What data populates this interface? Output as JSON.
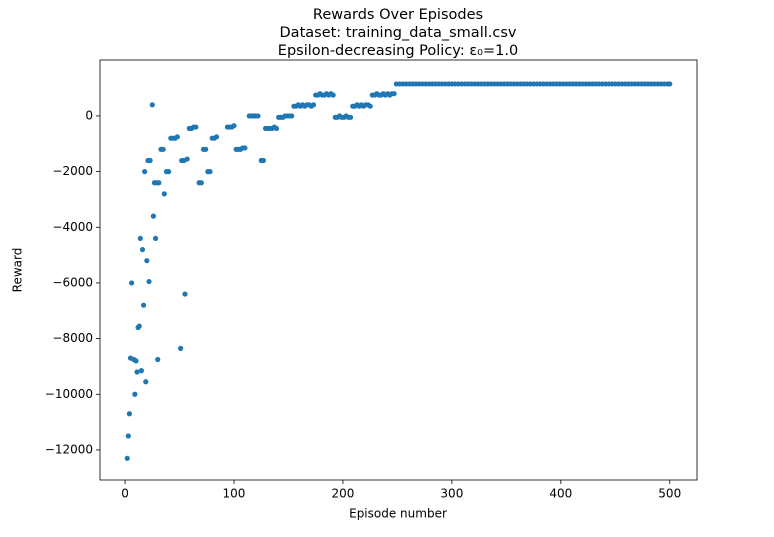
{
  "chart_data": {
    "type": "scatter",
    "title": "Rewards Over Episodes",
    "subtitle": [
      "Dataset: training_data_small.csv",
      "Epsilon-decreasing Policy: ε₀=1.0"
    ],
    "x_label": "Episode number",
    "y_label": "Reward",
    "color": "#1f77b4",
    "xlim": [
      -23,
      525
    ],
    "ylim": [
      -13080,
      2010
    ],
    "xticks": [
      0,
      100,
      200,
      300,
      400,
      500
    ],
    "yticks": [
      {
        "value": -12000,
        "label": "−12000"
      },
      {
        "value": -10000,
        "label": "−10000"
      },
      {
        "value": -8000,
        "label": "−8000"
      },
      {
        "value": -6000,
        "label": "−6000"
      },
      {
        "value": -4000,
        "label": "−4000"
      },
      {
        "value": -2000,
        "label": "−2000"
      },
      0
    ],
    "x": [
      2,
      3,
      4,
      5,
      6,
      8,
      9,
      10,
      11,
      12,
      13,
      14,
      15,
      16,
      17,
      18,
      19,
      20,
      21,
      22,
      23,
      25,
      26,
      27,
      28,
      29,
      30,
      31,
      33,
      35,
      36,
      38,
      40,
      42,
      44,
      46,
      48,
      51,
      52,
      54,
      55,
      57,
      59,
      61,
      63,
      65,
      68,
      70,
      72,
      74,
      76,
      78,
      80,
      82,
      84,
      94,
      96,
      98,
      100,
      102,
      104,
      106,
      108,
      110,
      114,
      116,
      118,
      120,
      122,
      125,
      127,
      129,
      131,
      133,
      135,
      137,
      139,
      141,
      143,
      145,
      147,
      149,
      151,
      153,
      155,
      157,
      159,
      161,
      163,
      165,
      167,
      169,
      171,
      173,
      175,
      177,
      179,
      181,
      183,
      185,
      187,
      189,
      191,
      193,
      195,
      197,
      199,
      201,
      203,
      205,
      207,
      209,
      211,
      213,
      215,
      217,
      219,
      221,
      223,
      225,
      227,
      229,
      231,
      233,
      235,
      237,
      239,
      241,
      243,
      245,
      247,
      249,
      252,
      255,
      258,
      261,
      264,
      267,
      270,
      273,
      276,
      279,
      282,
      285,
      288,
      291,
      294,
      297,
      300,
      303,
      306,
      309,
      312,
      315,
      318,
      321,
      324,
      327,
      330,
      333,
      336,
      339,
      342,
      345,
      348,
      351,
      354,
      357,
      360,
      363,
      366,
      369,
      372,
      375,
      378,
      381,
      384,
      387,
      390,
      393,
      396,
      399,
      402,
      405,
      408,
      411,
      414,
      417,
      420,
      423,
      426,
      429,
      432,
      435,
      438,
      441,
      444,
      447,
      450,
      453,
      456,
      459,
      462,
      465,
      468,
      471,
      474,
      477,
      480,
      483,
      486,
      489,
      492,
      495,
      498,
      500
    ],
    "values": [
      -12300,
      -11500,
      -10700,
      -8700,
      -6000,
      -8750,
      -10000,
      -8800,
      -9200,
      -7600,
      -7550,
      -4400,
      -9150,
      -4800,
      -6800,
      -2000,
      -9550,
      -5200,
      -1600,
      -5950,
      -1600,
      400,
      -3600,
      -2400,
      -4400,
      -2400,
      -8750,
      -2400,
      -1200,
      -1200,
      -2800,
      -2000,
      -2000,
      -800,
      -800,
      -800,
      -750,
      -8350,
      -1600,
      -1600,
      -6400,
      -1550,
      -450,
      -450,
      -400,
      -400,
      -2400,
      -2400,
      -1200,
      -1200,
      -2000,
      -2000,
      -800,
      -800,
      -750,
      -400,
      -400,
      -400,
      -350,
      -1200,
      -1200,
      -1200,
      -1150,
      -1150,
      0,
      0,
      0,
      0,
      0,
      -1600,
      -1600,
      -450,
      -450,
      -450,
      -450,
      -400,
      -450,
      -50,
      -50,
      -50,
      0,
      0,
      0,
      0,
      350,
      350,
      400,
      350,
      400,
      350,
      400,
      400,
      350,
      400,
      750,
      750,
      800,
      750,
      750,
      800,
      750,
      800,
      750,
      -50,
      -50,
      0,
      -50,
      -50,
      0,
      -50,
      -50,
      350,
      350,
      400,
      350,
      400,
      350,
      400,
      400,
      350,
      750,
      750,
      800,
      750,
      750,
      800,
      750,
      800,
      750,
      800,
      800,
      1150,
      1150,
      1150,
      1150,
      1150,
      1150,
      1150,
      1150,
      1150,
      1150,
      1150,
      1150,
      1150,
      1150,
      1150,
      1150,
      1150,
      1150,
      1150,
      1150,
      1150,
      1150,
      1150,
      1150,
      1150,
      1150,
      1150,
      1150,
      1150,
      1150,
      1150,
      1150,
      1150,
      1150,
      1150,
      1150,
      1150,
      1150,
      1150,
      1150,
      1150,
      1150,
      1150,
      1150,
      1150,
      1150,
      1150,
      1150,
      1150,
      1150,
      1150,
      1150,
      1150,
      1150,
      1150,
      1150,
      1150,
      1150,
      1150,
      1150,
      1150,
      1150,
      1150,
      1150,
      1150,
      1150,
      1150,
      1150,
      1150,
      1150,
      1150,
      1150,
      1150,
      1150,
      1150,
      1150,
      1150,
      1150,
      1150,
      1150,
      1150,
      1150,
      1150,
      1150,
      1150
    ]
  }
}
